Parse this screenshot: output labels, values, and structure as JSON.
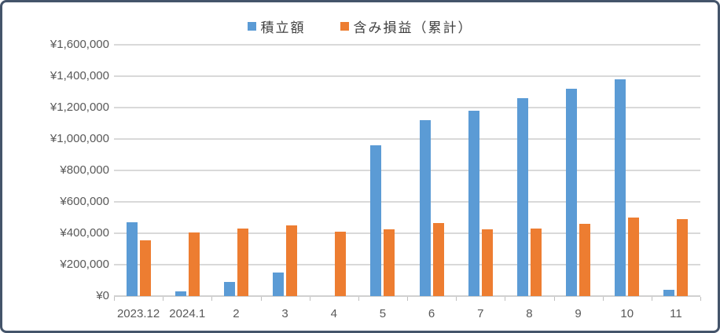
{
  "chart_data": {
    "type": "bar",
    "title": "",
    "categories": [
      "2023.12",
      "2024.1",
      "2",
      "3",
      "4",
      "5",
      "6",
      "7",
      "8",
      "9",
      "10",
      "11"
    ],
    "series": [
      {
        "name": "積立額",
        "color": "#5B9BD5",
        "values": [
          470000,
          30000,
          90000,
          150000,
          0,
          960000,
          1120000,
          1180000,
          1260000,
          1320000,
          1380000,
          40000
        ]
      },
      {
        "name": "含み損益（累計）",
        "color": "#ED7D31",
        "values": [
          355000,
          405000,
          430000,
          450000,
          410000,
          425000,
          465000,
          425000,
          430000,
          460000,
          500000,
          490000
        ]
      }
    ],
    "xlabel": "",
    "ylabel": "",
    "ylim": [
      0,
      1600000
    ],
    "ytick_step": 200000,
    "ytick_labels": [
      "¥0",
      "¥200,000",
      "¥400,000",
      "¥600,000",
      "¥800,000",
      "¥1,000,000",
      "¥1,200,000",
      "¥1,400,000",
      "¥1,600,000"
    ],
    "grid": true,
    "legend_position": "top-center"
  },
  "colors": {
    "series_blue": "#5B9BD5",
    "series_orange": "#ED7D31",
    "gridline": "#D9D9D9",
    "axis_text": "#595959",
    "legend_text": "#404040",
    "frame_border": "#44546A",
    "background": "#FFFFFF"
  }
}
